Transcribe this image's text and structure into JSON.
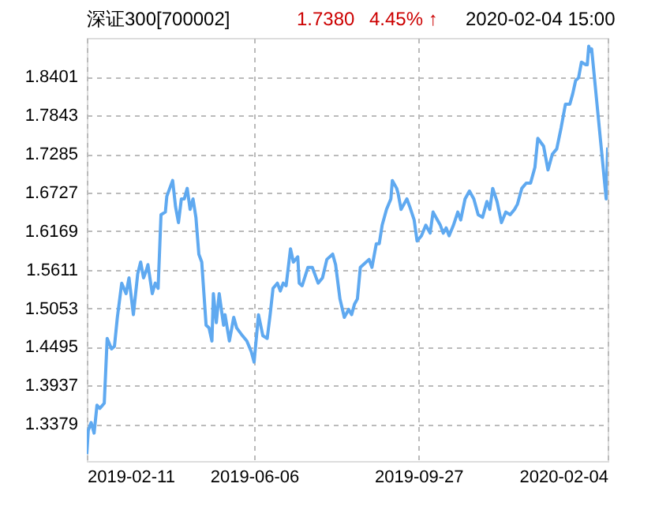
{
  "chart_data": {
    "type": "line",
    "title": "深证300[700002]",
    "annotations": [
      "1.7380",
      "4.45% ↑",
      "2020-02-04 15:00"
    ],
    "x": [
      "2019-02-11",
      "2019-02-12",
      "2019-02-14",
      "2019-02-16",
      "2019-02-18",
      "2019-02-20",
      "2019-02-23",
      "2019-02-25",
      "2019-02-28",
      "2019-03-02",
      "2019-03-04",
      "2019-03-07",
      "2019-03-10",
      "2019-03-12",
      "2019-03-15",
      "2019-03-18",
      "2019-03-20",
      "2019-03-22",
      "2019-03-24",
      "2019-03-25",
      "2019-03-28",
      "2019-03-30",
      "2019-04-01",
      "2019-04-03",
      "2019-04-06",
      "2019-04-07",
      "2019-04-11",
      "2019-04-13",
      "2019-04-15",
      "2019-04-17",
      "2019-04-19",
      "2019-04-21",
      "2019-04-23",
      "2019-04-25",
      "2019-04-27",
      "2019-04-29",
      "2019-05-01",
      "2019-05-04",
      "2019-05-06",
      "2019-05-08",
      "2019-05-09",
      "2019-05-11",
      "2019-05-13",
      "2019-05-16",
      "2019-05-17",
      "2019-05-20",
      "2019-05-23",
      "2019-05-25",
      "2019-05-29",
      "2019-06-01",
      "2019-06-04",
      "2019-06-06",
      "2019-06-09",
      "2019-06-12",
      "2019-06-15",
      "2019-06-17",
      "2019-06-19",
      "2019-06-22",
      "2019-06-24",
      "2019-06-26",
      "2019-06-28",
      "2019-07-01",
      "2019-07-03",
      "2019-07-06",
      "2019-07-07",
      "2019-07-09",
      "2019-07-13",
      "2019-07-16",
      "2019-07-20",
      "2019-07-23",
      "2019-07-26",
      "2019-07-30",
      "2019-08-01",
      "2019-08-04",
      "2019-08-07",
      "2019-08-10",
      "2019-08-12",
      "2019-08-14",
      "2019-08-16",
      "2019-08-18",
      "2019-08-22",
      "2019-08-24",
      "2019-08-26",
      "2019-08-29",
      "2019-08-31",
      "2019-09-02",
      "2019-09-05",
      "2019-09-08",
      "2019-09-09",
      "2019-09-12",
      "2019-09-13",
      "2019-09-15",
      "2019-09-19",
      "2019-09-21",
      "2019-09-24",
      "2019-09-26",
      "2019-09-29",
      "2019-10-02",
      "2019-10-05",
      "2019-10-07",
      "2019-10-10",
      "2019-10-12",
      "2019-10-14",
      "2019-10-16",
      "2019-10-18",
      "2019-10-21",
      "2019-10-24",
      "2019-10-26",
      "2019-10-29",
      "2019-11-01",
      "2019-11-04",
      "2019-11-07",
      "2019-11-10",
      "2019-11-13",
      "2019-11-15",
      "2019-11-17",
      "2019-11-20",
      "2019-11-23",
      "2019-11-26",
      "2019-11-29",
      "2019-12-02",
      "2019-12-04",
      "2019-12-07",
      "2019-12-10",
      "2019-12-13",
      "2019-12-16",
      "2019-12-18",
      "2019-12-22",
      "2019-12-25",
      "2019-12-28",
      "2019-12-31",
      "2020-01-03",
      "2020-01-06",
      "2020-01-09",
      "2020-01-11",
      "2020-01-13",
      "2020-01-15",
      "2020-01-17",
      "2020-01-20",
      "2020-01-21",
      "2020-01-22",
      "2020-01-23",
      "2020-01-24",
      "2020-02-03",
      "2020-02-04"
    ],
    "series": [
      {
        "color": "#5fa9f0",
        "values": [
          1.2944,
          1.3286,
          1.3401,
          1.3248,
          1.3652,
          1.3606,
          1.3682,
          1.4618,
          1.4466,
          1.4504,
          1.4923,
          1.5417,
          1.5265,
          1.5493,
          1.4961,
          1.5554,
          1.5722,
          1.5493,
          1.5607,
          1.5684,
          1.5265,
          1.5417,
          1.5341,
          1.6406,
          1.6445,
          1.6673,
          1.6901,
          1.6521,
          1.6292,
          1.6635,
          1.6635,
          1.6787,
          1.6483,
          1.6635,
          1.6368,
          1.5836,
          1.5722,
          1.4808,
          1.477,
          1.458,
          1.5265,
          1.4846,
          1.5265,
          1.4808,
          1.4961,
          1.458,
          1.4923,
          1.477,
          1.4656,
          1.458,
          1.4428,
          1.4276,
          1.496,
          1.4656,
          1.4618,
          1.496,
          1.5341,
          1.5417,
          1.5303,
          1.5417,
          1.5379,
          1.5912,
          1.5722,
          1.5798,
          1.5417,
          1.5379,
          1.5645,
          1.5645,
          1.5417,
          1.5493,
          1.576,
          1.5836,
          1.5684,
          1.5189,
          1.4923,
          1.5037,
          1.4961,
          1.5113,
          1.5189,
          1.5645,
          1.5722,
          1.576,
          1.5645,
          1.5988,
          1.5988,
          1.6254,
          1.6483,
          1.6635,
          1.6901,
          1.6787,
          1.6711,
          1.6483,
          1.6635,
          1.6521,
          1.633,
          1.6026,
          1.6102,
          1.6254,
          1.614,
          1.6445,
          1.633,
          1.6254,
          1.614,
          1.6216,
          1.6102,
          1.6254,
          1.6445,
          1.633,
          1.6635,
          1.6749,
          1.6635,
          1.6406,
          1.6368,
          1.6597,
          1.6483,
          1.6787,
          1.6597,
          1.6292,
          1.6445,
          1.6406,
          1.6483,
          1.6559,
          1.6787,
          1.6863,
          1.6863,
          1.7091,
          1.751,
          1.7396,
          1.7053,
          1.7282,
          1.7358,
          1.7662,
          1.8005,
          1.8005,
          1.8157,
          1.8347,
          1.8385,
          1.8613,
          1.8575,
          1.8575,
          1.8842,
          1.8766,
          1.8804,
          1.6635,
          1.738
        ]
      }
    ],
    "xlim": [
      "2019-02-11",
      "2020-02-04"
    ],
    "xticks": [
      "2019-02-11",
      "2019-06-06",
      "2019-09-27",
      "2020-02-04"
    ],
    "ylim": [
      1.2845,
      1.8963
    ],
    "yticks": [
      1.3379,
      1.3937,
      1.4495,
      1.5053,
      1.5611,
      1.6169,
      1.6727,
      1.7285,
      1.7843,
      1.8401
    ],
    "grid": true
  }
}
